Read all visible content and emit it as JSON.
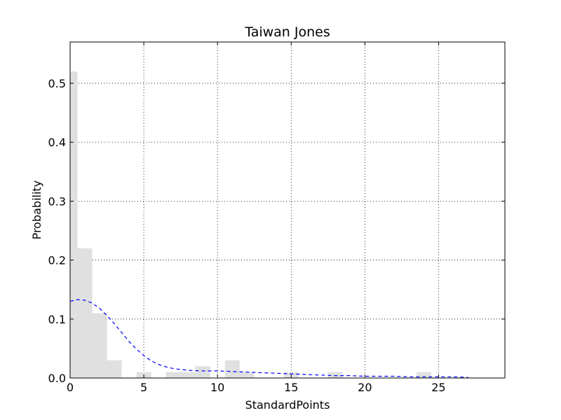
{
  "chart_data": {
    "type": "bar",
    "title": "Taiwan Jones",
    "xlabel": "StandardPoints",
    "ylabel": "Probability",
    "xlim": [
      0,
      29.5
    ],
    "ylim": [
      0,
      0.57
    ],
    "xticks": [
      0,
      5,
      10,
      15,
      20,
      25
    ],
    "yticks": [
      0.0,
      0.1,
      0.2,
      0.3,
      0.4,
      0.5
    ],
    "grid": true,
    "bar_color": "#e0e0e0",
    "curve_color": "#0000ff",
    "bins": [
      {
        "x0": 0.0,
        "x1": 0.5,
        "value": 0.52
      },
      {
        "x0": 0.5,
        "x1": 1.5,
        "value": 0.22
      },
      {
        "x0": 1.5,
        "x1": 2.5,
        "value": 0.11
      },
      {
        "x0": 2.5,
        "x1": 3.5,
        "value": 0.03
      },
      {
        "x0": 4.5,
        "x1": 5.5,
        "value": 0.01
      },
      {
        "x0": 6.5,
        "x1": 7.5,
        "value": 0.01
      },
      {
        "x0": 7.5,
        "x1": 8.5,
        "value": 0.01
      },
      {
        "x0": 8.5,
        "x1": 9.5,
        "value": 0.02
      },
      {
        "x0": 10.5,
        "x1": 11.5,
        "value": 0.03
      },
      {
        "x0": 11.5,
        "x1": 12.5,
        "value": 0.01
      },
      {
        "x0": 14.5,
        "x1": 15.5,
        "value": 0.01
      },
      {
        "x0": 17.5,
        "x1": 18.5,
        "value": 0.01
      },
      {
        "x0": 23.5,
        "x1": 24.5,
        "value": 0.01
      }
    ],
    "density_curve": {
      "x": [
        0,
        0.5,
        1,
        1.5,
        2,
        2.5,
        3,
        3.5,
        4,
        4.5,
        5,
        5.5,
        6,
        6.5,
        7,
        8,
        9,
        10,
        11,
        12,
        13,
        14,
        15,
        16,
        17,
        18,
        19,
        20,
        21,
        22,
        23,
        24,
        25,
        26,
        27
      ],
      "y": [
        0.13,
        0.133,
        0.132,
        0.127,
        0.118,
        0.106,
        0.092,
        0.077,
        0.062,
        0.049,
        0.038,
        0.029,
        0.023,
        0.019,
        0.016,
        0.013,
        0.012,
        0.012,
        0.011,
        0.01,
        0.009,
        0.008,
        0.007,
        0.006,
        0.005,
        0.004,
        0.004,
        0.003,
        0.003,
        0.003,
        0.002,
        0.002,
        0.002,
        0.002,
        0.001
      ]
    }
  }
}
